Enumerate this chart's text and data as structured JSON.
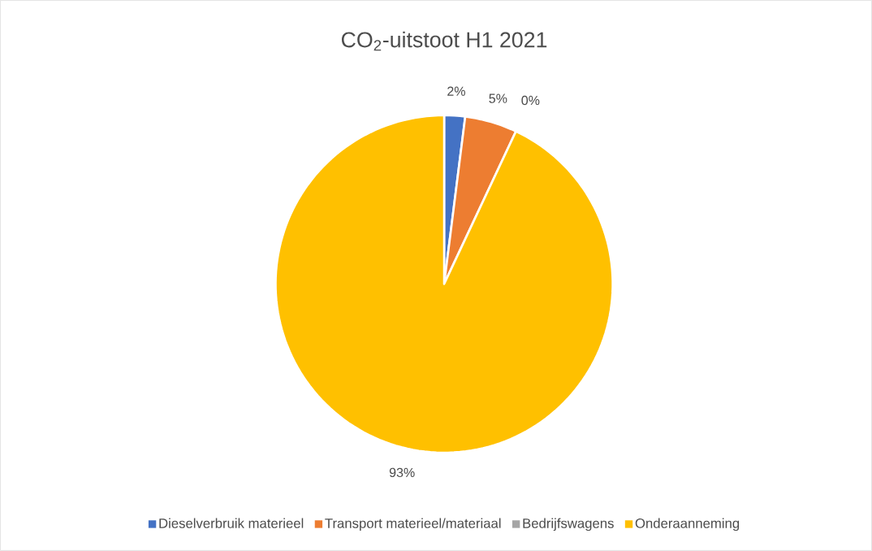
{
  "chart_data": {
    "type": "pie",
    "title": "CO$_{2}$-uitstoot H1 2021",
    "categories": [
      "Dieselverbruik materieel",
      "Transport materieel/materiaal",
      "Bedrijfswagens",
      "Onderaanneming"
    ],
    "values": [
      2,
      5,
      0,
      93
    ],
    "colors": [
      "#4472c4",
      "#ed7d31",
      "#a5a5a5",
      "#ffc000"
    ],
    "value_labels": [
      "2%",
      "5%",
      "0%",
      "93%"
    ],
    "legend": "bottom"
  }
}
